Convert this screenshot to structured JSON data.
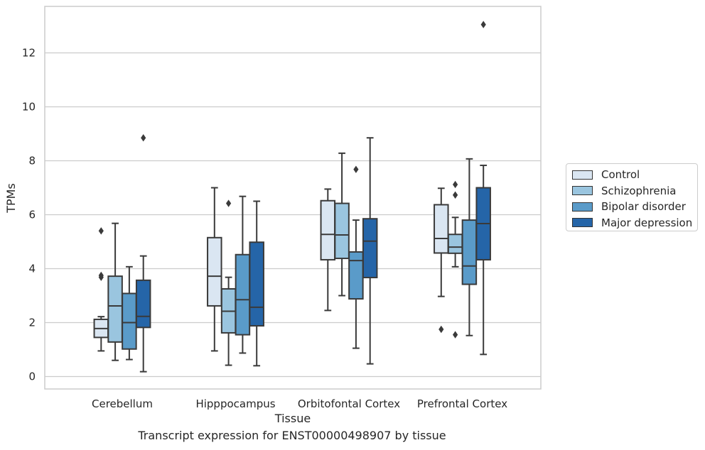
{
  "chart_data": {
    "type": "box",
    "title": "Transcript expression for ENST00000498907 by tissue",
    "xlabel": "Tissue",
    "ylabel": "TPMs",
    "ylim": [
      -0.45,
      14.25
    ],
    "yticks": [
      0,
      2,
      4,
      6,
      8,
      10,
      12
    ],
    "grid": "horizontal",
    "legend_position": "right",
    "categories": [
      "Cerebellum",
      "Hipppocampus",
      "Orbitofontal Cortex",
      "Prefrontal Cortex"
    ],
    "series": [
      {
        "name": "Control",
        "color": "#dae6f2",
        "boxes": [
          {
            "min": 0.95,
            "q1": 1.45,
            "median": 1.78,
            "q3": 2.12,
            "max": 2.22,
            "outliers": [
              5.4,
              3.75,
              3.68
            ]
          },
          {
            "min": 0.95,
            "q1": 2.62,
            "median": 3.72,
            "q3": 5.15,
            "max": 7.0,
            "outliers": []
          },
          {
            "min": 2.45,
            "q1": 4.33,
            "median": 5.27,
            "q3": 6.52,
            "max": 6.95,
            "outliers": []
          },
          {
            "min": 2.97,
            "q1": 4.58,
            "median": 5.12,
            "q3": 6.37,
            "max": 6.98,
            "outliers": [
              1.75
            ]
          }
        ]
      },
      {
        "name": "Schizophrenia",
        "color": "#9ac5df",
        "boxes": [
          {
            "min": 0.6,
            "q1": 1.28,
            "median": 2.62,
            "q3": 3.72,
            "max": 5.68,
            "outliers": []
          },
          {
            "min": 0.42,
            "q1": 1.62,
            "median": 2.42,
            "q3": 3.25,
            "max": 3.68,
            "outliers": [
              6.42
            ]
          },
          {
            "min": 3.0,
            "q1": 4.38,
            "median": 5.25,
            "q3": 6.42,
            "max": 8.28,
            "outliers": []
          },
          {
            "min": 4.07,
            "q1": 4.57,
            "median": 4.8,
            "q3": 5.27,
            "max": 5.9,
            "outliers": [
              7.12,
              6.73,
              1.55
            ]
          }
        ]
      },
      {
        "name": "Bipolar disorder",
        "color": "#5a9bc9",
        "boxes": [
          {
            "min": 0.63,
            "q1": 1.02,
            "median": 2.0,
            "q3": 3.08,
            "max": 4.07,
            "outliers": []
          },
          {
            "min": 0.87,
            "q1": 1.55,
            "median": 2.85,
            "q3": 4.52,
            "max": 6.68,
            "outliers": []
          },
          {
            "min": 1.05,
            "q1": 2.88,
            "median": 4.3,
            "q3": 4.62,
            "max": 5.8,
            "outliers": [
              7.68
            ]
          },
          {
            "min": 1.52,
            "q1": 3.42,
            "median": 4.1,
            "q3": 5.8,
            "max": 8.07,
            "outliers": []
          }
        ]
      },
      {
        "name": "Major depression",
        "color": "#2565a8",
        "boxes": [
          {
            "min": 0.18,
            "q1": 1.82,
            "median": 2.23,
            "q3": 3.57,
            "max": 4.47,
            "outliers": [
              8.85
            ]
          },
          {
            "min": 0.4,
            "q1": 1.88,
            "median": 2.57,
            "q3": 4.98,
            "max": 6.5,
            "outliers": []
          },
          {
            "min": 0.47,
            "q1": 3.67,
            "median": 5.02,
            "q3": 5.85,
            "max": 8.85,
            "outliers": []
          },
          {
            "min": 0.82,
            "q1": 4.33,
            "median": 5.67,
            "q3": 7.0,
            "max": 7.83,
            "outliers": [
              13.05
            ]
          }
        ]
      }
    ]
  }
}
